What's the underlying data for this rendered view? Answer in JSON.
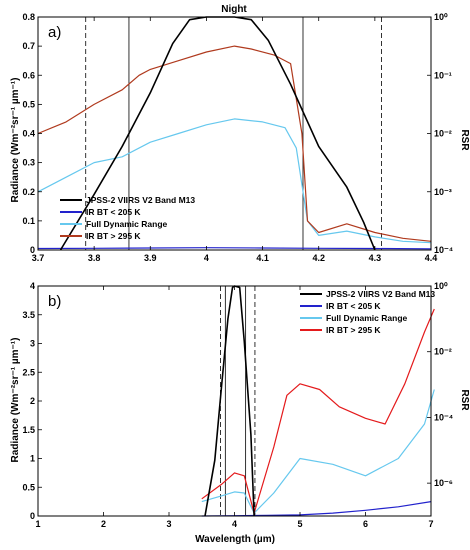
{
  "chart_data": [
    {
      "type": "line",
      "panel_label": "a)",
      "title": "Night",
      "xlabel": "",
      "ylabel": "Radiance (Wm⁻²sr⁻¹ µm⁻¹)",
      "y2label": "RSR",
      "xlim": [
        3.7,
        4.4
      ],
      "ylim": [
        0,
        0.8
      ],
      "y2lim": [
        0.0001,
        1
      ],
      "y2scale": "log",
      "xticks": [
        "3.7",
        "3.8",
        "3.9",
        "4",
        "4.1",
        "4.2",
        "4.3",
        "4.4"
      ],
      "yticks": [
        "0",
        "0.1",
        "0.2",
        "0.3",
        "0.4",
        "0.5",
        "0.6",
        "0.7",
        "0.8"
      ],
      "y2ticks": [
        "10⁻⁴",
        "10⁻³",
        "10⁻²",
        "10⁻¹",
        "10⁰"
      ],
      "legend_position": "lower-left",
      "vlines_solid": [
        3.862,
        4.172
      ],
      "vlines_dashed": [
        3.785,
        4.312
      ],
      "series": [
        {
          "name": "JPSS-2 VIIRS V2 Band M13",
          "color": "#000000",
          "axis": "right",
          "x": [
            3.74,
            3.8,
            3.85,
            3.9,
            3.94,
            3.97,
            4.0,
            4.05,
            4.08,
            4.11,
            4.15,
            4.2,
            4.25,
            4.28,
            4.3
          ],
          "values": [
            0.0001,
            0.0009,
            0.006,
            0.05,
            0.35,
            0.9,
            1.0,
            1.0,
            0.9,
            0.4,
            0.07,
            0.006,
            0.0012,
            0.0003,
            0.0001
          ]
        },
        {
          "name": "IR BT < 205 K",
          "color": "#2222cc",
          "axis": "left",
          "x": [
            3.7,
            3.8,
            3.9,
            4.0,
            4.1,
            4.2,
            4.3,
            4.4
          ],
          "values": [
            0.005,
            0.006,
            0.007,
            0.008,
            0.007,
            0.006,
            0.005,
            0.004
          ]
        },
        {
          "name": "Full Dynamic Range",
          "color": "#66c8ee",
          "axis": "left",
          "x": [
            3.7,
            3.75,
            3.8,
            3.85,
            3.9,
            3.95,
            4.0,
            4.05,
            4.1,
            4.14,
            4.16,
            4.18,
            4.2,
            4.25,
            4.3,
            4.35,
            4.4
          ],
          "values": [
            0.2,
            0.25,
            0.3,
            0.32,
            0.37,
            0.4,
            0.43,
            0.45,
            0.44,
            0.42,
            0.35,
            0.1,
            0.05,
            0.065,
            0.045,
            0.03,
            0.025
          ]
        },
        {
          "name": "IR BT > 295 K",
          "color": "#b03a1e",
          "axis": "left",
          "x": [
            3.7,
            3.75,
            3.8,
            3.85,
            3.88,
            3.9,
            3.95,
            4.0,
            4.05,
            4.08,
            4.12,
            4.15,
            4.17,
            4.18,
            4.2,
            4.25,
            4.3,
            4.35,
            4.4
          ],
          "values": [
            0.4,
            0.44,
            0.5,
            0.55,
            0.6,
            0.62,
            0.65,
            0.68,
            0.7,
            0.69,
            0.67,
            0.64,
            0.4,
            0.1,
            0.06,
            0.09,
            0.06,
            0.04,
            0.03
          ]
        }
      ]
    },
    {
      "type": "line",
      "panel_label": "b)",
      "title": "",
      "xlabel": "Wavelength (µm)",
      "ylabel": "Radiance (Wm⁻²sr⁻¹ µm⁻¹)",
      "y2label": "RSR",
      "xlim": [
        1,
        7
      ],
      "ylim": [
        0,
        4
      ],
      "y2lim": [
        1e-07,
        1
      ],
      "y2scale": "log",
      "xticks": [
        "1",
        "2",
        "3",
        "4",
        "5",
        "6",
        "7"
      ],
      "yticks": [
        "0",
        "0.5",
        "1",
        "1.5",
        "2",
        "2.5",
        "3",
        "3.5",
        "4"
      ],
      "y2ticks": [
        "10⁻⁶",
        "10⁻⁴",
        "10⁻²",
        "10⁰"
      ],
      "legend_position": "top-right",
      "vlines_solid": [
        3.86,
        4.17
      ],
      "vlines_dashed": [
        3.785,
        4.312
      ],
      "series": [
        {
          "name": "JPSS-2 VIIRS V2 Band M13",
          "color": "#000000",
          "axis": "right",
          "x": [
            3.55,
            3.7,
            3.8,
            3.9,
            3.97,
            4.0,
            4.08,
            4.15,
            4.25,
            4.3
          ],
          "values": [
            1e-07,
            5e-06,
            0.0008,
            0.1,
            0.9,
            1.0,
            0.9,
            0.02,
            3e-05,
            1e-07
          ]
        },
        {
          "name": "IR BT < 205 K",
          "color": "#2222cc",
          "axis": "left",
          "x": [
            3.5,
            4.0,
            4.5,
            5.0,
            5.5,
            6.0,
            6.5,
            7.0
          ],
          "values": [
            0.0,
            0.005,
            0.01,
            0.02,
            0.05,
            0.1,
            0.16,
            0.25
          ]
        },
        {
          "name": "Full Dynamic Range",
          "color": "#66c8ee",
          "axis": "left",
          "x": [
            3.5,
            3.8,
            4.0,
            4.15,
            4.3,
            4.6,
            5.0,
            5.5,
            6.0,
            6.5,
            6.9,
            7.05
          ],
          "values": [
            0.25,
            0.35,
            0.42,
            0.4,
            0.05,
            0.4,
            1.0,
            0.9,
            0.7,
            1.0,
            1.6,
            2.2
          ]
        },
        {
          "name": "IR BT > 295 K",
          "color": "#e41a1c",
          "axis": "left",
          "x": [
            3.5,
            3.8,
            4.0,
            4.15,
            4.3,
            4.6,
            4.8,
            5.0,
            5.3,
            5.6,
            6.0,
            6.3,
            6.6,
            6.9,
            7.05
          ],
          "values": [
            0.3,
            0.55,
            0.75,
            0.7,
            0.05,
            1.2,
            2.1,
            2.3,
            2.2,
            1.9,
            1.7,
            1.6,
            2.3,
            3.2,
            3.6
          ]
        }
      ]
    }
  ]
}
